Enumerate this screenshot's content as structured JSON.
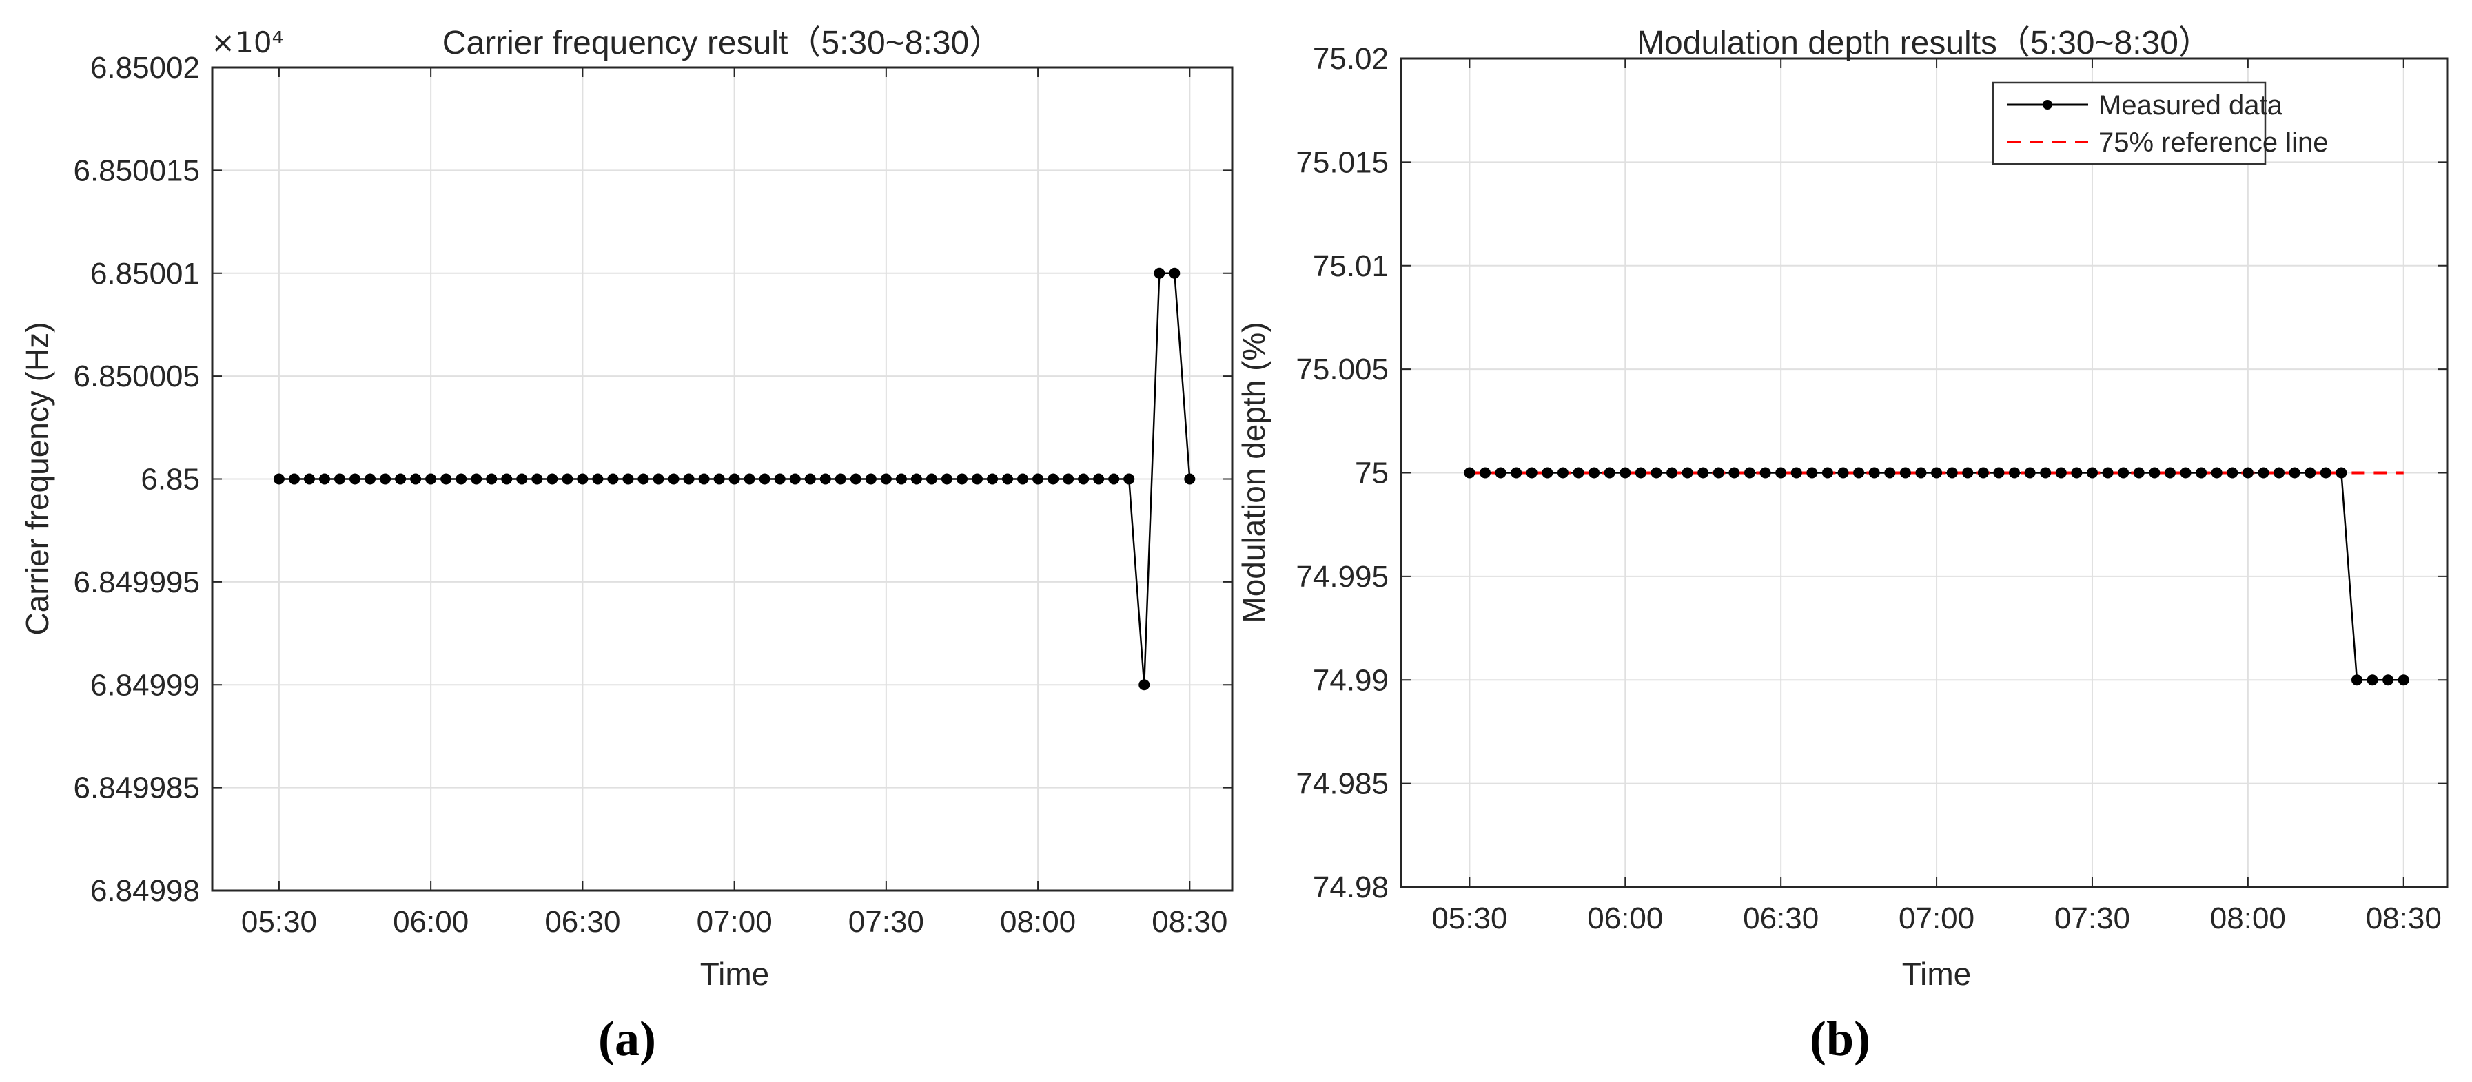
{
  "figure": {
    "background": "#ffffff",
    "captions": {
      "a": "(a)",
      "b": "(b)"
    }
  },
  "colors": {
    "measured_line": "#000000",
    "reference_line": "#ff0000",
    "axis": "#262626",
    "grid": "#e0e0e0"
  },
  "chart_data": [
    {
      "type": "line",
      "panel": "a",
      "title": "Carrier frequency result（5:30~8:30）",
      "xlabel": "Time",
      "ylabel": "Carrier frequency (Hz)",
      "y_axis_multiplier": "×10⁴",
      "grid": true,
      "x_tick_labels": [
        "05:30",
        "06:00",
        "06:30",
        "07:00",
        "07:30",
        "08:00",
        "08:30"
      ],
      "x_ticks_minutes": [
        330,
        360,
        390,
        420,
        450,
        480,
        510
      ],
      "xlim_minutes": [
        316.8,
        518.4
      ],
      "y_tick_labels": [
        "6.84998",
        "6.849985",
        "6.84999",
        "6.849995",
        "6.85",
        "6.850005",
        "6.85001",
        "6.850015",
        "6.85002"
      ],
      "y_ticks": [
        6.84998,
        6.849985,
        6.84999,
        6.849995,
        6.85,
        6.850005,
        6.85001,
        6.850015,
        6.85002
      ],
      "ylim": [
        6.84998,
        6.85002
      ],
      "series": [
        {
          "name": "Measured data",
          "color": "#000000",
          "marker": "dot",
          "x_start_minutes": 330,
          "x_step_minutes": 3,
          "values": [
            6.85,
            6.85,
            6.85,
            6.85,
            6.85,
            6.85,
            6.85,
            6.85,
            6.85,
            6.85,
            6.85,
            6.85,
            6.85,
            6.85,
            6.85,
            6.85,
            6.85,
            6.85,
            6.85,
            6.85,
            6.85,
            6.85,
            6.85,
            6.85,
            6.85,
            6.85,
            6.85,
            6.85,
            6.85,
            6.85,
            6.85,
            6.85,
            6.85,
            6.85,
            6.85,
            6.85,
            6.85,
            6.85,
            6.85,
            6.85,
            6.85,
            6.85,
            6.85,
            6.85,
            6.85,
            6.85,
            6.85,
            6.85,
            6.85,
            6.85,
            6.85,
            6.85,
            6.85,
            6.85,
            6.85,
            6.85,
            6.85,
            6.84999,
            6.85001,
            6.85001,
            6.85
          ]
        }
      ]
    },
    {
      "type": "line",
      "panel": "b",
      "title": "Modulation depth results（5:30~8:30）",
      "xlabel": "Time",
      "ylabel": "Modulation depth (%)",
      "grid": true,
      "x_tick_labels": [
        "05:30",
        "06:00",
        "06:30",
        "07:00",
        "07:30",
        "08:00",
        "08:30"
      ],
      "x_ticks_minutes": [
        330,
        360,
        390,
        420,
        450,
        480,
        510
      ],
      "xlim_minutes": [
        316.8,
        518.4
      ],
      "y_tick_labels": [
        "74.98",
        "74.985",
        "74.99",
        "74.995",
        "75",
        "75.005",
        "75.01",
        "75.015",
        "75.02"
      ],
      "y_ticks": [
        74.98,
        74.985,
        74.99,
        74.995,
        75,
        75.005,
        75.01,
        75.015,
        75.02
      ],
      "ylim": [
        74.98,
        75.02
      ],
      "series": [
        {
          "name": "Measured data",
          "color": "#000000",
          "marker": "dot",
          "x_start_minutes": 330,
          "x_step_minutes": 3,
          "values": [
            75,
            75,
            75,
            75,
            75,
            75,
            75,
            75,
            75,
            75,
            75,
            75,
            75,
            75,
            75,
            75,
            75,
            75,
            75,
            75,
            75,
            75,
            75,
            75,
            75,
            75,
            75,
            75,
            75,
            75,
            75,
            75,
            75,
            75,
            75,
            75,
            75,
            75,
            75,
            75,
            75,
            75,
            75,
            75,
            75,
            75,
            75,
            75,
            75,
            75,
            75,
            75,
            75,
            75,
            75,
            75,
            75,
            74.99,
            74.99,
            74.99,
            74.99
          ]
        }
      ],
      "reference_line": {
        "label": "75% reference line",
        "y": 75,
        "x_range_minutes": [
          330,
          510
        ],
        "color": "#ff0000",
        "style": "dashed"
      },
      "legend": {
        "position": "top-right",
        "entries": [
          "Measured data",
          "75% reference line"
        ]
      }
    }
  ]
}
